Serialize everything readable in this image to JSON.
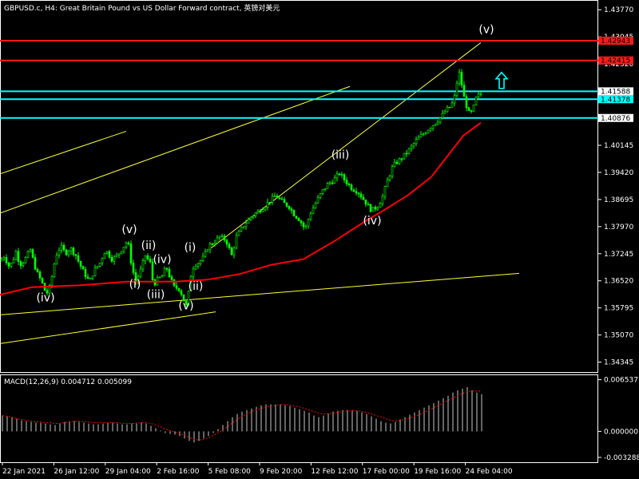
{
  "window": {
    "title": "GBPUSD.c, H4:  Great Britain Pound vs US Dollar Forward contract, 英镑对美元"
  },
  "chart_data": {
    "type": "candlestick",
    "symbol": "GBPUSD.c",
    "timeframe": "H4",
    "price_axis": {
      "ylim": [
        1.3408,
        1.4401
      ],
      "ticks": [
        "1.43770",
        "1.43045",
        "1.42320",
        "1.41595",
        "1.40870",
        "1.40145",
        "1.39420",
        "1.38695",
        "1.37970",
        "1.37245",
        "1.36520",
        "1.35795",
        "1.35070",
        "1.34345"
      ]
    },
    "time_axis": {
      "labels": [
        "22 Jan 2021",
        "26 Jan 12:00",
        "29 Jan 04:00",
        "2 Feb 16:00",
        "5 Feb 08:00",
        "9 Feb 20:00",
        "12 Feb 12:00",
        "17 Feb 00:00",
        "19 Feb 16:00",
        "24 Feb 04:00"
      ]
    },
    "price_path": [
      [
        0,
        1.3705
      ],
      [
        6,
        1.372
      ],
      [
        10,
        1.369
      ],
      [
        15,
        1.37
      ],
      [
        20,
        1.373
      ],
      [
        25,
        1.3695
      ],
      [
        30,
        1.3705
      ],
      [
        38,
        1.3735
      ],
      [
        45,
        1.368
      ],
      [
        52,
        1.365
      ],
      [
        58,
        1.3615
      ],
      [
        63,
        1.364
      ],
      [
        70,
        1.372
      ],
      [
        76,
        1.3745
      ],
      [
        82,
        1.3725
      ],
      [
        88,
        1.374
      ],
      [
        95,
        1.372
      ],
      [
        100,
        1.3695
      ],
      [
        106,
        1.367
      ],
      [
        112,
        1.365
      ],
      [
        118,
        1.368
      ],
      [
        125,
        1.37
      ],
      [
        132,
        1.3735
      ],
      [
        140,
        1.371
      ],
      [
        147,
        1.372
      ],
      [
        155,
        1.3745
      ],
      [
        160,
        1.376
      ],
      [
        165,
        1.369
      ],
      [
        170,
        1.365
      ],
      [
        176,
        1.368
      ],
      [
        182,
        1.372
      ],
      [
        188,
        1.37
      ],
      [
        192,
        1.364
      ],
      [
        197,
        1.3655
      ],
      [
        203,
        1.3665
      ],
      [
        208,
        1.369
      ],
      [
        213,
        1.366
      ],
      [
        218,
        1.3635
      ],
      [
        225,
        1.363
      ],
      [
        230,
        1.36
      ],
      [
        234,
        1.358
      ],
      [
        238,
        1.366
      ],
      [
        243,
        1.3695
      ],
      [
        248,
        1.37
      ],
      [
        255,
        1.3715
      ],
      [
        261,
        1.3745
      ],
      [
        268,
        1.3755
      ],
      [
        275,
        1.377
      ],
      [
        283,
        1.376
      ],
      [
        290,
        1.372
      ],
      [
        296,
        1.377
      ],
      [
        305,
        1.38
      ],
      [
        315,
        1.3825
      ],
      [
        325,
        1.384
      ],
      [
        335,
        1.386
      ],
      [
        345,
        1.388
      ],
      [
        350,
        1.387
      ],
      [
        355,
        1.386
      ],
      [
        362,
        1.385
      ],
      [
        368,
        1.383
      ],
      [
        375,
        1.3815
      ],
      [
        382,
        1.379
      ],
      [
        388,
        1.383
      ],
      [
        395,
        1.386
      ],
      [
        403,
        1.389
      ],
      [
        410,
        1.391
      ],
      [
        417,
        1.392
      ],
      [
        425,
        1.394
      ],
      [
        432,
        1.392
      ],
      [
        440,
        1.39
      ],
      [
        448,
        1.389
      ],
      [
        455,
        1.387
      ],
      [
        460,
        1.3855
      ],
      [
        465,
        1.384
      ],
      [
        472,
        1.385
      ],
      [
        478,
        1.387
      ],
      [
        485,
        1.392
      ],
      [
        492,
        1.396
      ],
      [
        500,
        1.3975
      ],
      [
        507,
        1.399
      ],
      [
        515,
        1.401
      ],
      [
        522,
        1.403
      ],
      [
        530,
        1.4045
      ],
      [
        537,
        1.406
      ],
      [
        545,
        1.4075
      ],
      [
        552,
        1.409
      ],
      [
        559,
        1.411
      ],
      [
        565,
        1.412
      ],
      [
        570,
        1.415
      ],
      [
        574,
        1.4215
      ],
      [
        577,
        1.419
      ],
      [
        580,
        1.415
      ],
      [
        584,
        1.412
      ],
      [
        588,
        1.4095
      ],
      [
        592,
        1.411
      ],
      [
        596,
        1.414
      ],
      [
        600,
        1.415
      ],
      [
        604,
        1.4155
      ]
    ],
    "moving_average": {
      "color": "#ff0000",
      "path": [
        [
          0,
          1.3615
        ],
        [
          40,
          1.3635
        ],
        [
          100,
          1.364
        ],
        [
          160,
          1.365
        ],
        [
          220,
          1.365
        ],
        [
          260,
          1.3655
        ],
        [
          300,
          1.367
        ],
        [
          340,
          1.3695
        ],
        [
          380,
          1.371
        ],
        [
          420,
          1.376
        ],
        [
          460,
          1.3815
        ],
        [
          480,
          1.384
        ],
        [
          510,
          1.388
        ],
        [
          540,
          1.393
        ],
        [
          560,
          1.3985
        ],
        [
          580,
          1.404
        ],
        [
          602,
          1.4075
        ]
      ]
    },
    "horizontal_lines": [
      {
        "price": 1.42943,
        "color": "#ff1a1a",
        "label": "1.42943",
        "label_bg": "#ff1a1a"
      },
      {
        "price": 1.42415,
        "color": "#ff1a1a",
        "label": "1.42415",
        "label_bg": "#ff1a1a"
      },
      {
        "price": 1.41588,
        "color": "#00ffff",
        "label": "1.41588",
        "label_bg": "#ffffff"
      },
      {
        "price": 1.41378,
        "color": "#00ffff",
        "label": "1.41378",
        "label_bg": "#00ffff"
      },
      {
        "price": 1.40876,
        "color": "#00ffff",
        "label": "1.40876",
        "label_bg": "#ffffff"
      }
    ],
    "trend_lines": [
      {
        "x1": 0,
        "p1": 1.3484,
        "x2": 270,
        "p2": 1.3569
      },
      {
        "x1": 0,
        "p1": 1.3561,
        "x2": 650,
        "p2": 1.3672
      },
      {
        "x1": 0,
        "p1": 1.3833,
        "x2": 438,
        "p2": 1.4172
      },
      {
        "x1": 0,
        "p1": 1.3938,
        "x2": 158,
        "p2": 1.4052
      },
      {
        "x1": 262,
        "p1": 1.3736,
        "x2": 602,
        "p2": 1.4289
      }
    ],
    "wave_labels": [
      {
        "text": "(iv)",
        "x": 57,
        "p": 1.3597
      },
      {
        "text": "(v)",
        "x": 162,
        "p": 1.378
      },
      {
        "text": "(ii)",
        "x": 186,
        "p": 1.3737
      },
      {
        "text": "(iv)",
        "x": 203,
        "p": 1.3699
      },
      {
        "text": "(i)",
        "x": 169,
        "p": 1.3633
      },
      {
        "text": "(iii)",
        "x": 195,
        "p": 1.3605
      },
      {
        "text": "(i)",
        "x": 238,
        "p": 1.3731
      },
      {
        "text": "(ii)",
        "x": 245,
        "p": 1.3628
      },
      {
        "text": "(v)",
        "x": 233,
        "p": 1.3576
      },
      {
        "text": "(iii)",
        "x": 426,
        "p": 1.3979
      },
      {
        "text": "(iv)",
        "x": 466,
        "p": 1.3803
      },
      {
        "text": "(v)",
        "x": 609,
        "p": 1.4314
      }
    ],
    "arrow": {
      "x": 628,
      "p": 1.4188,
      "color": "#00ffff",
      "direction": "up"
    },
    "macd": {
      "label": "MACD(12,26,9) 0.004712 0.005099",
      "ticks": [
        "0.006537",
        "0.000000",
        "-0.003288"
      ],
      "ylim": [
        -0.0039,
        0.007
      ],
      "histogram": [
        0.002,
        0.0019,
        0.0018,
        0.0016,
        0.0014,
        0.0013,
        0.0012,
        0.0011,
        0.0011,
        0.001,
        0.0009,
        0.0008,
        0.001,
        0.0012,
        0.0013,
        0.0013,
        0.0012,
        0.0011,
        0.001,
        0.0009,
        0.0009,
        0.001,
        0.0011,
        0.0011,
        0.001,
        0.0009,
        0.0009,
        0.001,
        0.0011,
        0.0011,
        0.001,
        0.0007,
        0.0004,
        0.0001,
        -0.0002,
        -0.0003,
        -0.0004,
        -0.0006,
        -0.0009,
        -0.0012,
        -0.0014,
        -0.0012,
        -0.0009,
        -0.0006,
        -0.0002,
        0.0003,
        0.0008,
        0.0013,
        0.0018,
        0.0022,
        0.0025,
        0.0027,
        0.0029,
        0.0031,
        0.0033,
        0.0034,
        0.0034,
        0.0034,
        0.0034,
        0.0033,
        0.0032,
        0.003,
        0.0028,
        0.0026,
        0.0024,
        0.002,
        0.0018,
        0.002,
        0.0023,
        0.0025,
        0.0026,
        0.0027,
        0.0027,
        0.0027,
        0.0026,
        0.0024,
        0.0022,
        0.0019,
        0.0016,
        0.0013,
        0.0011,
        0.001,
        0.0012,
        0.0015,
        0.0018,
        0.0021,
        0.0024,
        0.0027,
        0.003,
        0.0033,
        0.0036,
        0.0039,
        0.0042,
        0.0045,
        0.0049,
        0.0052,
        0.0054,
        0.0056,
        0.0052,
        0.0049,
        0.0047
      ],
      "signal": [
        0.002,
        0.0019,
        0.0018,
        0.0016,
        0.0015,
        0.0014,
        0.0013,
        0.0012,
        0.0012,
        0.0011,
        0.0011,
        0.001,
        0.001,
        0.0011,
        0.0012,
        0.0013,
        0.0013,
        0.0012,
        0.0012,
        0.0011,
        0.0011,
        0.0011,
        0.0011,
        0.0011,
        0.0011,
        0.001,
        0.001,
        0.001,
        0.001,
        0.0011,
        0.0011,
        0.001,
        0.0008,
        0.0006,
        0.0003,
        0.0001,
        -0.0001,
        -0.0003,
        -0.0005,
        -0.0008,
        -0.001,
        -0.0011,
        -0.001,
        -0.0008,
        -0.0005,
        -0.0002,
        0.0002,
        0.0006,
        0.0011,
        0.0015,
        0.0019,
        0.0022,
        0.0025,
        0.0027,
        0.0029,
        0.0031,
        0.0032,
        0.0033,
        0.0034,
        0.0034,
        0.0033,
        0.0032,
        0.0031,
        0.0029,
        0.0027,
        0.0025,
        0.0023,
        0.0022,
        0.0022,
        0.0023,
        0.0024,
        0.0025,
        0.0026,
        0.0026,
        0.0026,
        0.0025,
        0.0024,
        0.0022,
        0.002,
        0.0018,
        0.0016,
        0.0014,
        0.0013,
        0.0014,
        0.0015,
        0.0017,
        0.0019,
        0.0021,
        0.0024,
        0.0027,
        0.003,
        0.0033,
        0.0036,
        0.0039,
        0.0042,
        0.0045,
        0.0048,
        0.005,
        0.0051,
        0.0051,
        0.0051
      ]
    }
  }
}
